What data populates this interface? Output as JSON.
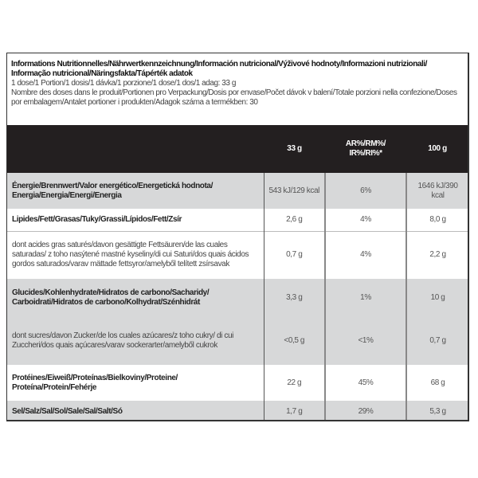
{
  "intro": {
    "title": "Informations Nutritionnelles/Nährwertkennzeichnung/Información nutricional/Výživové hodnoty/Informazioni nutrizionali/ Informação nutricional/Näringsfakta/Tápérték adatok",
    "dose": "1 dose/1 Portion/1 dosis/1 dávka/1 porzione/1 dose/1 dos/1 adag: 33 g",
    "servings": "Nombre des doses dans le produit/Portionen pro Verpackung/Dosis por envase/Počet dávok v balení/Totale porzioni nella confezione/Doses por embalagem/Antalet portioner i produkten/Adagok száma a termékben: 30"
  },
  "table": {
    "headers": [
      "",
      "33 g",
      "AR%/RM%/ IR%/RI%*",
      "100 g"
    ],
    "rows": [
      {
        "label": "Énergie/Brennwert/Valor energético/Energetická hodnota/ Energia/Energia/Energi/Energia",
        "per_serving": "543 kJ/129 kcal",
        "ri": "6%",
        "per_100g": "1646 kJ/390 kcal"
      },
      {
        "label": "Lipides/Fett/Grasas/Tuky/Grassi/Lípidos/Fett/Zsír",
        "per_serving": "2,6 g",
        "ri": "4%",
        "per_100g": "8,0 g"
      },
      {
        "label": "dont acides gras saturés/davon gesättigte Fettsäuren/de las cuales saturadas/ z toho nasýtené mastné kyseliny/di cui Saturi/dos quais ácidos gordos saturados/varav mättade fettsyror/amelyből telített zsírsavak",
        "per_serving": "0,7 g",
        "ri": "4%",
        "per_100g": "2,2 g"
      },
      {
        "label": "Glucides/Kohlenhydrate/Hidratos de carbono/Sacharidy/ Carboidrati/Hidratos de carbono/Kolhydrat/Szénhidrát",
        "per_serving": "3,3 g",
        "ri": "1%",
        "per_100g": "10 g"
      },
      {
        "label": "dont sucres/davon Zucker/de los cuales azúcares/z toho cukry/ di cui Zuccheri/dos quais açúcares/varav sockerarter/amelyből cukrok",
        "per_serving": "<0,5 g",
        "ri": "<1%",
        "per_100g": "0,7 g"
      },
      {
        "label": "Protéines/Eiweiß/Proteínas/Bielkoviny/Proteine/ Proteína/Protein/Fehérje",
        "per_serving": "22 g",
        "ri": "45%",
        "per_100g": "68 g"
      },
      {
        "label": "Sel/Salz/Sal/Sol/Sale/Sal/Salt/Só",
        "per_serving": "1,7 g",
        "ri": "29%",
        "per_100g": "5,3 g"
      }
    ]
  },
  "colors": {
    "header_bg": "#231f20",
    "shaded_row": "#d7d8d9"
  }
}
